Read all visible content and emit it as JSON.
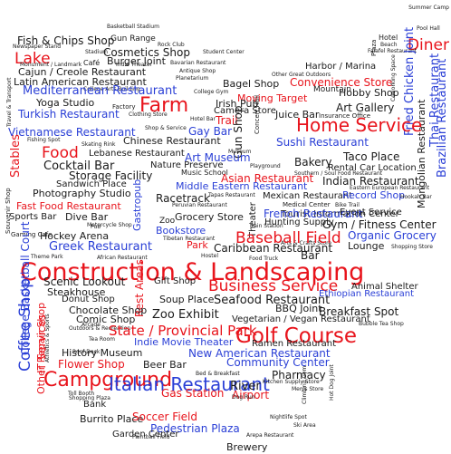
{
  "colors": {
    "black": "#1a1a1a",
    "red": "#e8141c",
    "blue": "#2a3fd6"
  },
  "words": [
    {
      "text": "Summer Camp",
      "color": "black"
    },
    {
      "text": "Basketball Stadium",
      "color": "black"
    },
    {
      "text": "Pool Hall",
      "color": "black"
    },
    {
      "text": "Fish & Chips Shop",
      "color": "black"
    },
    {
      "text": "Gun Range",
      "color": "black"
    },
    {
      "text": "Hotel",
      "color": "black"
    },
    {
      "text": "Beach",
      "color": "black"
    },
    {
      "text": "Diner",
      "color": "red"
    },
    {
      "text": "Newspaper Stand",
      "color": "black"
    },
    {
      "text": "Rock Club",
      "color": "black"
    },
    {
      "text": "Plaza",
      "color": "black"
    },
    {
      "text": "Cosmetics Shop",
      "color": "black"
    },
    {
      "text": "Stadium",
      "color": "black"
    },
    {
      "text": "Student Center",
      "color": "black"
    },
    {
      "text": "Falafel Restaurant",
      "color": "black"
    },
    {
      "text": "Lake",
      "color": "red"
    },
    {
      "text": "Burger Joint",
      "color": "black"
    },
    {
      "text": "Bavarian Restaurant",
      "color": "black"
    },
    {
      "text": "Monument / Landmark",
      "color": "black"
    },
    {
      "text": "Café",
      "color": "black"
    },
    {
      "text": "Indie Theater",
      "color": "black"
    },
    {
      "text": "Harbor / Marina",
      "color": "black"
    },
    {
      "text": "Fried Chicken Joint",
      "color": "blue"
    },
    {
      "text": "Cajun / Creole Restaurant",
      "color": "black"
    },
    {
      "text": "Antique Shop",
      "color": "black"
    },
    {
      "text": "Other Great Outdoors",
      "color": "black"
    },
    {
      "text": "Latin American Restaurant",
      "color": "black"
    },
    {
      "text": "Planetarium",
      "color": "black"
    },
    {
      "text": "Mountain",
      "color": "black"
    },
    {
      "text": "Travel & Transport",
      "color": "black"
    },
    {
      "text": "College Arts Building",
      "color": "black"
    },
    {
      "text": "Bagel Shop",
      "color": "black"
    },
    {
      "text": "Convenience Store",
      "color": "red"
    },
    {
      "text": "Coworking Space",
      "color": "black"
    },
    {
      "text": "Mediterranean Restaurant",
      "color": "blue"
    },
    {
      "text": "College Gym",
      "color": "black"
    },
    {
      "text": "Moving Target",
      "color": "red"
    },
    {
      "text": "Hobby Shop",
      "color": "black"
    },
    {
      "text": "Yoga Studio",
      "color": "black"
    },
    {
      "text": "Farm",
      "color": "red"
    },
    {
      "text": "Irish Pub",
      "color": "black"
    },
    {
      "text": "Factory",
      "color": "black"
    },
    {
      "text": "Camera Store",
      "color": "black"
    },
    {
      "text": "Art Gallery",
      "color": "black"
    },
    {
      "text": "Thai Restaurant",
      "color": "blue"
    },
    {
      "text": "Turkish Restaurant",
      "color": "blue"
    },
    {
      "text": "Clothing Store",
      "color": "black"
    },
    {
      "text": "Juice Bar",
      "color": "black"
    },
    {
      "text": "Insurance Office",
      "color": "black"
    },
    {
      "text": "Mongolian Restaurant",
      "color": "black"
    },
    {
      "text": "Brazilian Restaurant",
      "color": "blue"
    },
    {
      "text": "Vietnamese Restaurant",
      "color": "blue"
    },
    {
      "text": "Trail",
      "color": "red"
    },
    {
      "text": "Hotel Bar",
      "color": "black"
    },
    {
      "text": "Home Service",
      "color": "red"
    },
    {
      "text": "Fishing Spot",
      "color": "black"
    },
    {
      "text": "Shop & Service",
      "color": "black"
    },
    {
      "text": "Gay Bar",
      "color": "blue"
    },
    {
      "text": "Concert Hall",
      "color": "black"
    },
    {
      "text": "Chinese Restaurant",
      "color": "black"
    },
    {
      "text": "Sushi Restaurant",
      "color": "blue"
    },
    {
      "text": "Stables",
      "color": "red"
    },
    {
      "text": "Skating Rink",
      "color": "black"
    },
    {
      "text": "Gun Shop",
      "color": "black"
    },
    {
      "text": "Food",
      "color": "red"
    },
    {
      "text": "Lebanese Restaurant",
      "color": "black"
    },
    {
      "text": "Museum",
      "color": "black"
    },
    {
      "text": "Bakery",
      "color": "black"
    },
    {
      "text": "Taco Place",
      "color": "black"
    },
    {
      "text": "Souvenir Shop",
      "color": "black"
    },
    {
      "text": "Cocktail Bar",
      "color": "black"
    },
    {
      "text": "Art Museum",
      "color": "blue"
    },
    {
      "text": "Nature Preserve",
      "color": "black"
    },
    {
      "text": "Southern / Soul Food Restaurant",
      "color": "black"
    },
    {
      "text": "Storage Facility",
      "color": "black"
    },
    {
      "text": "Music School",
      "color": "black"
    },
    {
      "text": "Playground",
      "color": "black"
    },
    {
      "text": "Rental Car Location",
      "color": "black"
    },
    {
      "text": "Asian Restaurant",
      "color": "red"
    },
    {
      "text": "Indian Restaurant",
      "color": "black"
    },
    {
      "text": "Sandwich Place",
      "color": "black"
    },
    {
      "text": "Middle Eastern Restaurant",
      "color": "blue"
    },
    {
      "text": "Eastern European Restaurant",
      "color": "black"
    },
    {
      "text": "Photography Studio",
      "color": "black"
    },
    {
      "text": "Gastropub",
      "color": "blue"
    },
    {
      "text": "Racetrack",
      "color": "black"
    },
    {
      "text": "Tapas Restaurant",
      "color": "black"
    },
    {
      "text": "Mexican Restaurant",
      "color": "black"
    },
    {
      "text": "Record Shop",
      "color": "blue"
    },
    {
      "text": "Hookah Bar",
      "color": "black"
    },
    {
      "text": "Fast Food Restaurant",
      "color": "red"
    },
    {
      "text": "Peruvian Restaurant",
      "color": "black"
    },
    {
      "text": "Medical Center",
      "color": "black"
    },
    {
      "text": "Theater",
      "color": "black"
    },
    {
      "text": "Tourist Information Center",
      "color": "black"
    },
    {
      "text": "Bike Trail",
      "color": "black"
    },
    {
      "text": "Dive Bar",
      "color": "black"
    },
    {
      "text": "Pub",
      "color": "black"
    },
    {
      "text": "Grocery Store",
      "color": "black"
    },
    {
      "text": "French Restaurant",
      "color": "blue"
    },
    {
      "text": "Event Service",
      "color": "black"
    },
    {
      "text": "Sports Bar",
      "color": "black"
    },
    {
      "text": "Zoo",
      "color": "black"
    },
    {
      "text": "Motorcycle Shop",
      "color": "black"
    },
    {
      "text": "Train Station",
      "color": "black"
    },
    {
      "text": "Hunting Supply",
      "color": "black"
    },
    {
      "text": "Gym / Fitness Center",
      "color": "black"
    },
    {
      "text": "Gaming Cafe",
      "color": "black"
    },
    {
      "text": "Hockey Arena",
      "color": "black"
    },
    {
      "text": "Bookstore",
      "color": "blue"
    },
    {
      "text": "Tibetan Restaurant",
      "color": "black"
    },
    {
      "text": "Arts & Crafts Store",
      "color": "black"
    },
    {
      "text": "Organic Grocery",
      "color": "blue"
    },
    {
      "text": "Baseball Field",
      "color": "red"
    },
    {
      "text": "Greek Restaurant",
      "color": "blue"
    },
    {
      "text": "Park",
      "color": "red"
    },
    {
      "text": "Caribbean Restaurant",
      "color": "black"
    },
    {
      "text": "Lounge",
      "color": "black"
    },
    {
      "text": "Shopping Store",
      "color": "black"
    },
    {
      "text": "Theme Park",
      "color": "black"
    },
    {
      "text": "African Restaurant",
      "color": "black"
    },
    {
      "text": "Hostel",
      "color": "black"
    },
    {
      "text": "Food Truck",
      "color": "black"
    },
    {
      "text": "Bar",
      "color": "black"
    },
    {
      "text": "Construction & Landscaping",
      "color": "red"
    },
    {
      "text": "College Basketball Court",
      "color": "blue"
    },
    {
      "text": "Scenic Lookout",
      "color": "black"
    },
    {
      "text": "Gift Shop",
      "color": "black"
    },
    {
      "text": "Steakhouse",
      "color": "black"
    },
    {
      "text": "Business Service",
      "color": "red"
    },
    {
      "text": "Animal Shelter",
      "color": "black"
    },
    {
      "text": "Coffee Shop",
      "color": "blue"
    },
    {
      "text": "Donut Shop",
      "color": "black"
    },
    {
      "text": "Rest Areas",
      "color": "red"
    },
    {
      "text": "Soup Place",
      "color": "black"
    },
    {
      "text": "Seafood Restaurant",
      "color": "black"
    },
    {
      "text": "Ethiopian Restaurant",
      "color": "blue"
    },
    {
      "text": "Chocolate Shop",
      "color": "black"
    },
    {
      "text": "BBQ Joint",
      "color": "black"
    },
    {
      "text": "Comic Shop",
      "color": "black"
    },
    {
      "text": "Zoo Exhibit",
      "color": "black"
    },
    {
      "text": "Breakfast Spot",
      "color": "black"
    },
    {
      "text": "Arcade",
      "color": "black"
    },
    {
      "text": "Outdoors & Recreation",
      "color": "black"
    },
    {
      "text": "Vegetarian / Vegan Restaurant",
      "color": "black"
    },
    {
      "text": "State / Provincial Park",
      "color": "red"
    },
    {
      "text": "Bubble Tea Shop",
      "color": "black"
    },
    {
      "text": "Golf Course",
      "color": "red"
    },
    {
      "text": "Athletics & Sports",
      "color": "black"
    },
    {
      "text": "Tea Room",
      "color": "black"
    },
    {
      "text": "Indie Movie Theater",
      "color": "blue"
    },
    {
      "text": "Ramen Restaurant",
      "color": "black"
    },
    {
      "text": "IT Services",
      "color": "red"
    },
    {
      "text": "History Museum",
      "color": "black"
    },
    {
      "text": "New American Restaurant",
      "color": "blue"
    },
    {
      "text": "Flower Shop",
      "color": "red"
    },
    {
      "text": "Beer Bar",
      "color": "black"
    },
    {
      "text": "Community Center",
      "color": "blue"
    },
    {
      "text": "Other Repair Shop",
      "color": "red"
    },
    {
      "text": "Bed & Breakfast",
      "color": "black"
    },
    {
      "text": "Hot Dog Joint",
      "color": "black"
    },
    {
      "text": "Campground",
      "color": "red"
    },
    {
      "text": "Pharmacy",
      "color": "black"
    },
    {
      "text": "Italian Restaurant",
      "color": "blue"
    },
    {
      "text": "Kitchen Supply Store",
      "color": "black"
    },
    {
      "text": "Toll Booth",
      "color": "black"
    },
    {
      "text": "Gas Station",
      "color": "red"
    },
    {
      "text": "River",
      "color": "black"
    },
    {
      "text": "Airport",
      "color": "red"
    },
    {
      "text": "Men's Store",
      "color": "black"
    },
    {
      "text": "Shopping Plaza",
      "color": "black"
    },
    {
      "text": "Dog Run",
      "color": "black"
    },
    {
      "text": "Climbing Gym",
      "color": "black"
    },
    {
      "text": "Bank",
      "color": "black"
    },
    {
      "text": "Nightlife Spot",
      "color": "black"
    },
    {
      "text": "Burrito Place",
      "color": "black"
    },
    {
      "text": "Soccer Field",
      "color": "red"
    },
    {
      "text": "Pedestrian Plaza",
      "color": "blue"
    },
    {
      "text": "Ski Area",
      "color": "black"
    },
    {
      "text": "Paintball Field",
      "color": "black"
    },
    {
      "text": "Garden Center",
      "color": "black"
    },
    {
      "text": "Arepa Restaurant",
      "color": "black"
    },
    {
      "text": "Brewery",
      "color": "black"
    },
    {
      "text": "Roof Deck",
      "color": "black"
    }
  ]
}
